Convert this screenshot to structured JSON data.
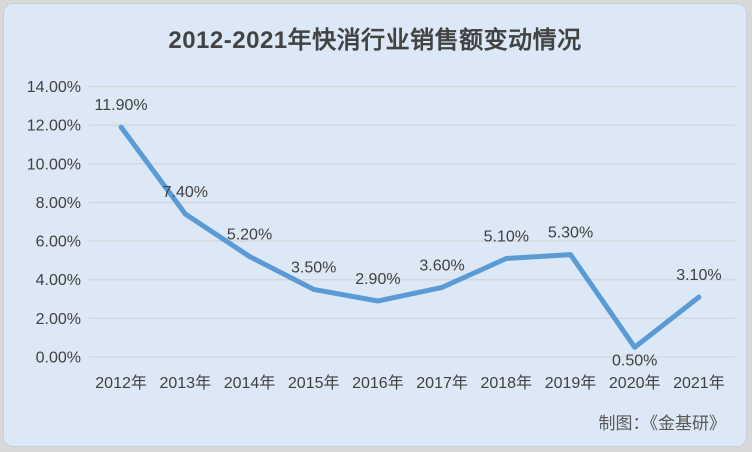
{
  "card": {
    "title": "2012-2021年快消行业销售额变动情况",
    "credit": "制图：《金基研》"
  },
  "chart_data": {
    "type": "line",
    "title": "2012-2021年快消行业销售额变动情况",
    "categories": [
      "2012年",
      "2013年",
      "2014年",
      "2015年",
      "2016年",
      "2017年",
      "2018年",
      "2019年",
      "2020年",
      "2021年"
    ],
    "values": [
      11.9,
      7.4,
      5.2,
      3.5,
      2.9,
      3.6,
      5.1,
      5.3,
      0.5,
      3.1
    ],
    "data_labels": [
      "11.90%",
      "7.40%",
      "5.20%",
      "3.50%",
      "2.90%",
      "3.60%",
      "5.10%",
      "5.30%",
      "0.50%",
      "3.10%"
    ],
    "label_positions": [
      "above",
      "above",
      "above",
      "above",
      "above",
      "above",
      "above",
      "above",
      "below",
      "above"
    ],
    "xlabel": "",
    "ylabel": "",
    "ylim": [
      0,
      14
    ],
    "ytick_step": 2,
    "ytick_labels": [
      "0.00%",
      "2.00%",
      "4.00%",
      "6.00%",
      "8.00%",
      "10.00%",
      "12.00%",
      "14.00%"
    ],
    "grid": true,
    "legend": "none",
    "colors": {
      "line": "#5B9BD5",
      "card_background": "#dce8f5",
      "outer_background": "#d8d8d8",
      "gridline": "#d2d6da",
      "text": "#404040",
      "title": "#434343",
      "credit": "#595959"
    }
  }
}
